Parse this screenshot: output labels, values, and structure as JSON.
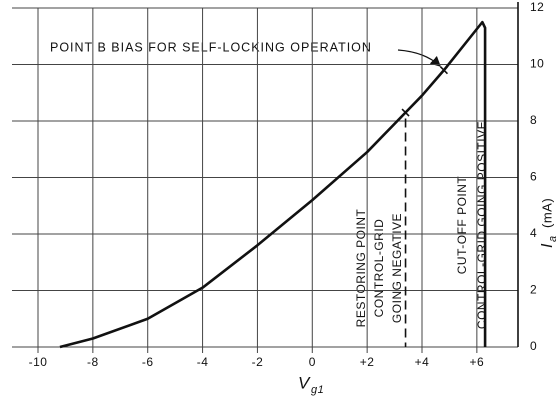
{
  "chart_data": {
    "type": "line",
    "x_label": {
      "text": "V",
      "subscript": "g1"
    },
    "y_label": {
      "text": "I",
      "subscript": "a",
      "unit": "(mA)"
    },
    "x": [
      -9.2,
      -8,
      -6,
      -4,
      -2,
      0,
      2,
      3.4,
      4,
      4.8,
      6.2,
      6.3,
      6.3
    ],
    "series": [
      {
        "color": "#111111",
        "values": [
          0,
          0.3,
          1.0,
          2.1,
          3.6,
          5.2,
          6.9,
          8.3,
          8.9,
          9.8,
          11.5,
          11.3,
          0
        ]
      }
    ],
    "markers": [
      {
        "x": 3.4,
        "y": 8.3
      },
      {
        "x": 4.8,
        "y": 9.8
      }
    ],
    "xlim": [
      -10,
      7.5
    ],
    "ylim": [
      0,
      12
    ],
    "xticks": [
      -10,
      -8,
      -6,
      -4,
      -2,
      0,
      {
        "value": 2,
        "label": "+2"
      },
      {
        "value": 4,
        "label": "+4"
      },
      {
        "value": 6,
        "label": "+6"
      }
    ],
    "yticks": [
      0,
      2,
      4,
      6,
      8,
      10,
      12
    ],
    "grid": true,
    "annotations": {
      "point_b": "POINT B BIAS FOR SELF-LOCKING OPERATION",
      "restoring": [
        "RESTORING POINT",
        "CONTROL-GRID",
        "GOING NEGATIVE"
      ],
      "cutoff": [
        "CUT-OFF POINT",
        "CONTROL-GRID GOING POSITIVE"
      ]
    }
  }
}
